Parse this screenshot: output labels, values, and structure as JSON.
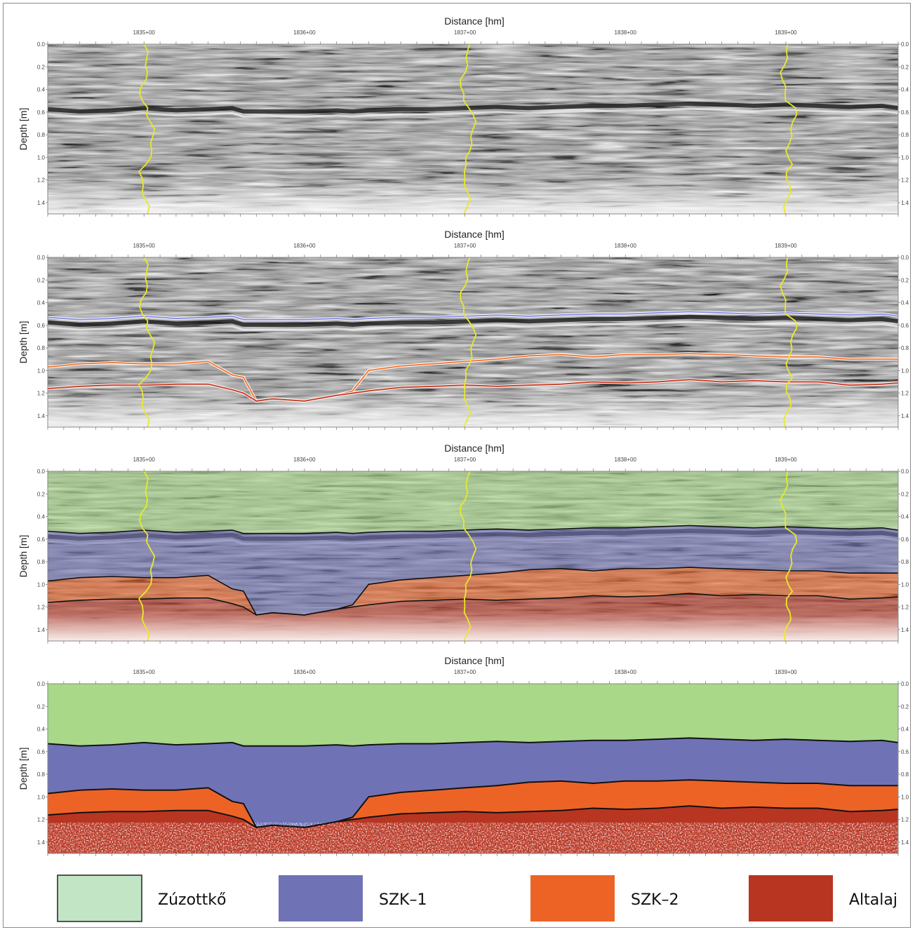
{
  "chart_data": [
    {
      "type": "heatmap",
      "title": "Distance [hm]",
      "xlabel": "Distance [hm]",
      "ylabel": "Depth [m]",
      "xlim": [
        1834.4,
        1839.7
      ],
      "ylim": [
        1.5,
        0.0
      ],
      "xticks": [
        "1835+00",
        "1836+00",
        "1837+00",
        "1838+00",
        "1839+00"
      ],
      "yticks": [
        "0.0",
        "0.2",
        "0.4",
        "0.6",
        "0.8",
        "1.0",
        "1.2",
        "1.4"
      ],
      "borehole_lines_at_km": [
        1835.0,
        1837.0,
        1839.0
      ],
      "horizons": []
    },
    {
      "type": "heatmap",
      "title": "Distance [hm]",
      "xlabel": "Distance [hm]",
      "ylabel": "Depth [m]",
      "xlim": [
        1834.4,
        1839.7
      ],
      "ylim": [
        1.5,
        0.0
      ],
      "xticks": [
        "1835+00",
        "1836+00",
        "1837+00",
        "1838+00",
        "1839+00"
      ],
      "yticks": [
        "0.0",
        "0.2",
        "0.4",
        "0.6",
        "0.8",
        "1.0",
        "1.2",
        "1.4"
      ],
      "borehole_lines_at_km": [
        1835.0,
        1837.0,
        1839.0
      ],
      "horizons": [
        "Zúzottkő / SZK–1",
        "SZK–1 / SZK–2",
        "SZK–2 / Altalaj"
      ]
    },
    {
      "type": "heatmap",
      "title": "Distance [hm]",
      "xlabel": "Distance [hm]",
      "ylabel": "Depth [m]",
      "xlim": [
        1834.4,
        1839.7
      ],
      "ylim": [
        1.5,
        0.0
      ],
      "xticks": [
        "1835+00",
        "1836+00",
        "1837+00",
        "1838+00",
        "1839+00"
      ],
      "yticks": [
        "0.0",
        "0.2",
        "0.4",
        "0.6",
        "0.8",
        "1.0",
        "1.2",
        "1.4"
      ],
      "borehole_lines_at_km": [
        1835.0,
        1837.0,
        1839.0
      ],
      "layers": [
        "Zúzottkő",
        "SZK–1",
        "SZK–2",
        "Altalaj"
      ]
    },
    {
      "type": "area",
      "title": "Distance [hm]",
      "xlabel": "Distance [hm]",
      "ylabel": "Depth [m]",
      "xlim": [
        1834.4,
        1839.7
      ],
      "ylim": [
        1.5,
        0.0
      ],
      "xticks": [
        "1835+00",
        "1836+00",
        "1837+00",
        "1838+00",
        "1839+00"
      ],
      "yticks": [
        "0.0",
        "0.2",
        "0.4",
        "0.6",
        "0.8",
        "1.0",
        "1.2",
        "1.4"
      ],
      "layers": [
        "Zúzottkő",
        "SZK–1",
        "SZK–2",
        "Altalaj"
      ]
    }
  ],
  "interfaces": {
    "x": [
      1834.4,
      1834.6,
      1834.8,
      1835.0,
      1835.2,
      1835.4,
      1835.55,
      1835.62,
      1835.7,
      1835.8,
      1836.0,
      1836.2,
      1836.3,
      1836.4,
      1836.6,
      1836.8,
      1837.0,
      1837.2,
      1837.4,
      1837.6,
      1837.8,
      1838.0,
      1838.2,
      1838.4,
      1838.6,
      1838.8,
      1839.0,
      1839.2,
      1839.4,
      1839.6,
      1839.7
    ],
    "top_szk1": [
      0.53,
      0.55,
      0.54,
      0.52,
      0.54,
      0.53,
      0.52,
      0.55,
      0.55,
      0.55,
      0.55,
      0.54,
      0.55,
      0.54,
      0.53,
      0.53,
      0.52,
      0.51,
      0.52,
      0.51,
      0.5,
      0.5,
      0.49,
      0.48,
      0.49,
      0.5,
      0.49,
      0.5,
      0.51,
      0.5,
      0.52
    ],
    "top_szk2": [
      0.97,
      0.94,
      0.93,
      0.94,
      0.94,
      0.92,
      1.04,
      1.06,
      1.27,
      1.25,
      1.27,
      1.22,
      1.18,
      1.0,
      0.96,
      0.94,
      0.92,
      0.9,
      0.87,
      0.86,
      0.88,
      0.86,
      0.86,
      0.85,
      0.86,
      0.87,
      0.88,
      0.88,
      0.9,
      0.9,
      0.9
    ],
    "top_altalaj": [
      1.16,
      1.14,
      1.13,
      1.13,
      1.12,
      1.12,
      1.17,
      1.2,
      1.27,
      1.25,
      1.27,
      1.22,
      1.2,
      1.18,
      1.15,
      1.14,
      1.13,
      1.14,
      1.13,
      1.12,
      1.1,
      1.11,
      1.1,
      1.08,
      1.1,
      1.09,
      1.1,
      1.1,
      1.13,
      1.12,
      1.11
    ]
  },
  "legend": [
    {
      "label": "Zúzottkő",
      "color": "#c2e5c6"
    },
    {
      "label": "SZK–1",
      "color": "#6f73b5"
    },
    {
      "label": "SZK–2",
      "color": "#ed6326"
    },
    {
      "label": "Altalaj",
      "color": "#b83522"
    }
  ],
  "colors": {
    "top_szk1_line": "#8a8fe0",
    "top_szk2_line": "#f07a3a",
    "top_altalaj_line": "#c8402a",
    "borehole_line": "#e9e92a",
    "layer_green": "#a8d888",
    "layer_blue": "#6f73b5",
    "layer_orange": "#ed6326",
    "layer_red": "#b83522"
  }
}
